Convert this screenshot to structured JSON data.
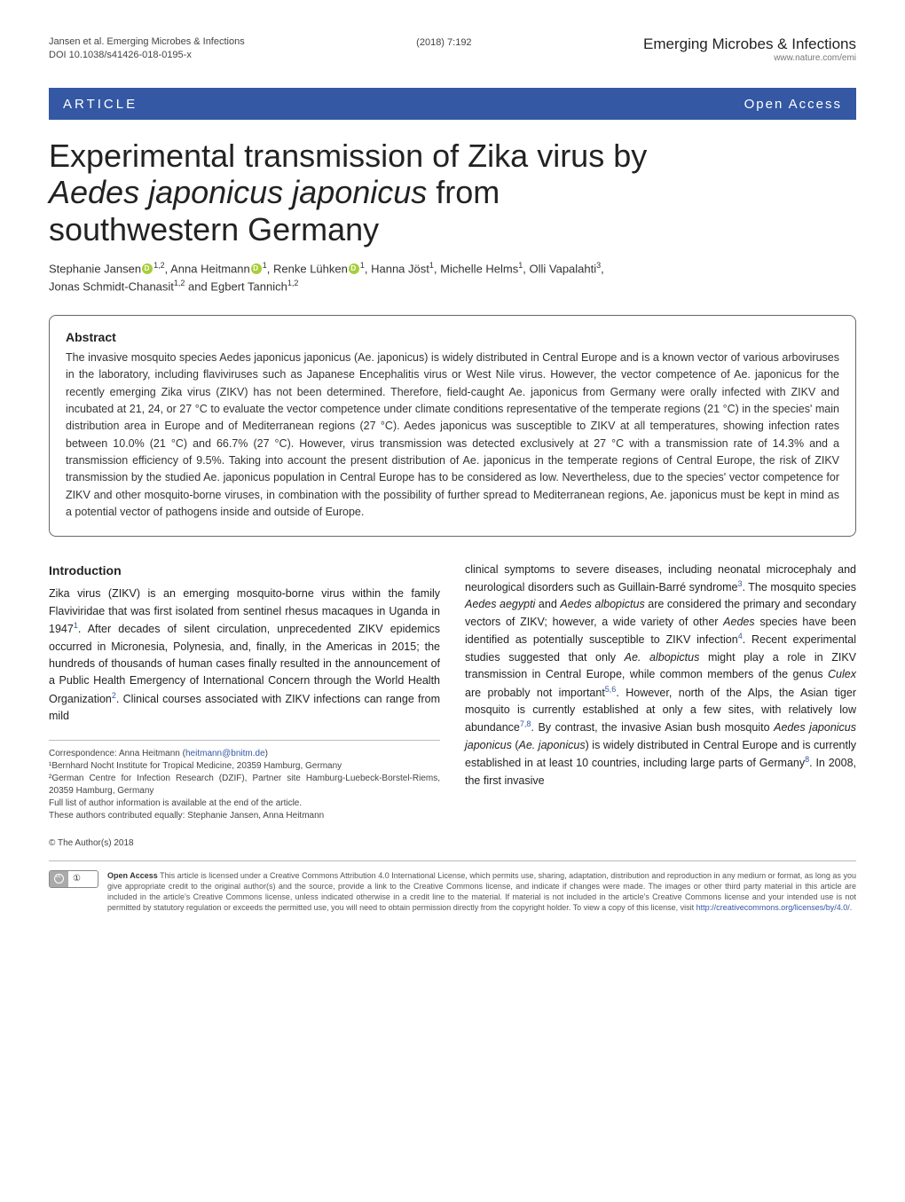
{
  "header": {
    "running_head": "Jansen et al. Emerging Microbes & Infections",
    "doi": "DOI 10.1038/s41426-018-0195-x",
    "issue": "(2018) 7:192",
    "journal": "Emerging Microbes & Infections",
    "journal_url": "www.nature.com/emi"
  },
  "band": {
    "article": "ARTICLE",
    "open_access": "Open Access"
  },
  "title_line1": "Experimental transmission of Zika virus by",
  "title_line2": "Aedes japonicus japonicus",
  "title_line2b": " from",
  "title_line3": "southwestern Germany",
  "authors_html": "Stephanie Jansen¹,², Anna Heitmann¹, Renke Lühken¹, Hanna Jöst¹, Michelle Helms¹, Olli Vapalahti³, Jonas Schmidt-Chanasit¹,² and Egbert Tannich¹,²",
  "authors": {
    "a1": "Stephanie Jansen",
    "a1_aff": "1,2",
    "a2": "Anna Heitmann",
    "a2_aff": "1",
    "a3": "Renke Lühken",
    "a3_aff": "1",
    "a4": "Hanna Jöst",
    "a4_aff": "1",
    "a5": "Michelle Helms",
    "a5_aff": "1",
    "a6": "Olli Vapalahti",
    "a6_aff": "3",
    "a7": "Jonas Schmidt-Chanasit",
    "a7_aff": "1,2",
    "a8": "Egbert Tannich",
    "a8_aff": "1,2"
  },
  "abstract": {
    "heading": "Abstract",
    "text": "The invasive mosquito species Aedes japonicus japonicus (Ae. japonicus) is widely distributed in Central Europe and is a known vector of various arboviruses in the laboratory, including flaviviruses such as Japanese Encephalitis virus or West Nile virus. However, the vector competence of Ae. japonicus for the recently emerging Zika virus (ZIKV) has not been determined. Therefore, field-caught Ae. japonicus from Germany were orally infected with ZIKV and incubated at 21, 24, or 27 °C to evaluate the vector competence under climate conditions representative of the temperate regions (21 °C) in the species' main distribution area in Europe and of Mediterranean regions (27 °C). Aedes japonicus was susceptible to ZIKV at all temperatures, showing infection rates between 10.0% (21 °C) and 66.7% (27 °C). However, virus transmission was detected exclusively at 27 °C with a transmission rate of 14.3% and a transmission efficiency of 9.5%. Taking into account the present distribution of Ae. japonicus in the temperate regions of Central Europe, the risk of ZIKV transmission by the studied Ae. japonicus population in Central Europe has to be considered as low. Nevertheless, due to the species' vector competence for ZIKV and other mosquito-borne viruses, in combination with the possibility of further spread to Mediterranean regions, Ae. japonicus must be kept in mind as a potential vector of pathogens inside and outside of Europe."
  },
  "intro": {
    "heading": "Introduction",
    "left_p1a": "Zika virus (ZIKV) is an emerging mosquito-borne virus within the family Flaviviridae that was first isolated from sentinel rhesus macaques in Uganda in 1947",
    "left_p1b": ". After decades of silent circulation, unprecedented ZIKV epidemics occurred in Micronesia, Polynesia, and, finally, in the Americas in 2015; the hundreds of thousands of human cases finally resulted in the announcement of a Public Health Emergency of International Concern through the World Health Organization",
    "left_p1c": ". Clinical courses associated with ZIKV infections can range from mild",
    "right_p1a": "clinical symptoms to severe diseases, including neonatal microcephaly and neurological disorders such as Guillain-Barré syndrome",
    "right_p1b": ". The mosquito species ",
    "right_p1c": " and ",
    "right_p1d": " are considered the primary and secondary vectors of ZIKV; however, a wide variety of other ",
    "right_p1e": " species have been identified as potentially susceptible to ZIKV infection",
    "right_p1f": ". Recent experimental studies suggested that only ",
    "right_p1g": " might play a role in ZIKV transmission in Central Europe, while common members of the genus ",
    "right_p1h": " are probably not important",
    "right_p1i": ". However, north of the Alps, the Asian tiger mosquito is currently established at only a few sites, with relatively low abundance",
    "right_p1j": ". By contrast, the invasive Asian bush mosquito ",
    "right_p1k": " (",
    "right_p1l": ") is widely distributed in Central Europe and is currently established in at least 10 countries, including large parts of Germany",
    "right_p1m": ". In 2008, the first invasive",
    "species": {
      "aegypti": "Aedes aegypti",
      "albopictus": "Aedes albopictus",
      "aedes": "Aedes",
      "ae_albopictus": "Ae. albopictus",
      "culex": "Culex",
      "ajj": "Aedes japonicus japonicus",
      "aj": "Ae. japonicus"
    }
  },
  "footnotes": {
    "correspondence": "Correspondence: Anna Heitmann (",
    "email": "heitmann@bnitm.de",
    "aff1": "¹Bernhard Nocht Institute for Tropical Medicine, 20359 Hamburg, Germany",
    "aff2": "²German Centre for Infection Research (DZIF), Partner site Hamburg-Luebeck-Borstel-Riems, 20359 Hamburg, Germany",
    "full_list": "Full list of author information is available at the end of the article.",
    "equal": "These authors contributed equally: Stephanie Jansen, Anna Heitmann"
  },
  "license": {
    "copyright": "© The Author(s) 2018",
    "bold": "Open Access",
    "text": " This article is licensed under a Creative Commons Attribution 4.0 International License, which permits use, sharing, adaptation, distribution and reproduction in any medium or format, as long as you give appropriate credit to the original author(s) and the source, provide a link to the Creative Commons license, and indicate if changes were made. The images or other third party material in this article are included in the article's Creative Commons license, unless indicated otherwise in a credit line to the material. If material is not included in the article's Creative Commons license and your intended use is not permitted by statutory regulation or exceeds the permitted use, you will need to obtain permission directly from the copyright holder. To view a copy of this license, visit ",
    "url": "http://creativecommons.org/licenses/by/4.0/",
    "period": "."
  },
  "colors": {
    "band": "#3458a3",
    "link": "#3458a3",
    "orcid": "#a6ce39"
  }
}
